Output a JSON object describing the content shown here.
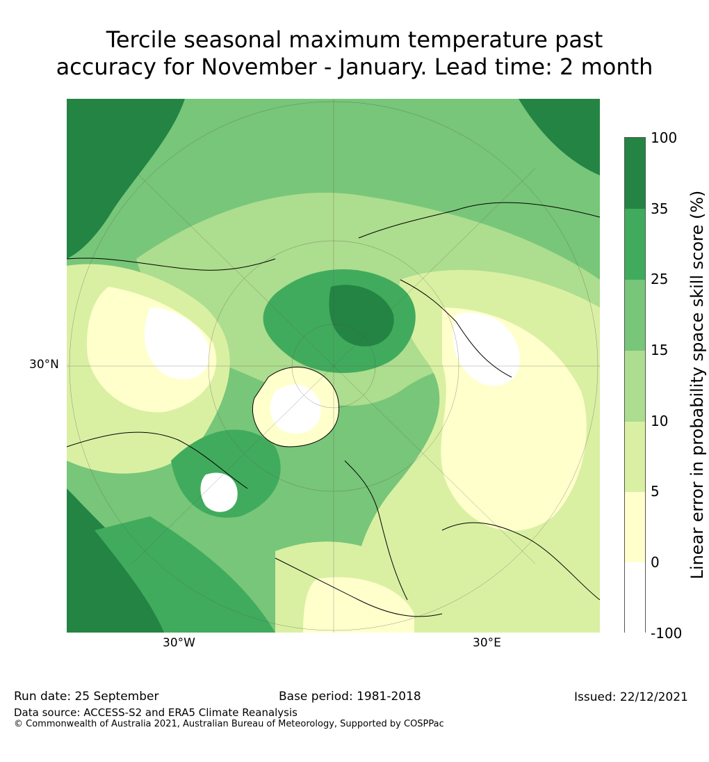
{
  "title_line1": "Tercile seasonal maximum temperature past",
  "title_line2": "accuracy for November - January. Lead time: 2 month",
  "map": {
    "lat_label": "30°N",
    "lon_labels": {
      "west": "30°W",
      "east": "30°E"
    }
  },
  "colorbar": {
    "title": "Linear error in probability space skill score (%)",
    "ticks": [
      "100",
      "35",
      "25",
      "15",
      "10",
      "5",
      "0",
      "-100"
    ],
    "colors": {
      "c35_100": "#238443",
      "c25_35": "#41ab5d",
      "c15_25": "#78c679",
      "c10_15": "#addd8e",
      "c5_10": "#d9f0a3",
      "c0_5": "#ffffcc",
      "cneg": "#ffffff"
    }
  },
  "footer": {
    "run_date": "Run date: 25 September",
    "base_period": "Base period: 1981-2018",
    "issued": "Issued: 22/12/2021",
    "data_source": "Data source: ACCESS-S2 and ERA5 Climate Reanalysis",
    "copyright": "© Commonwealth of Australia 2021, Australian Bureau of Meteorology, Supported by COSPPac"
  }
}
